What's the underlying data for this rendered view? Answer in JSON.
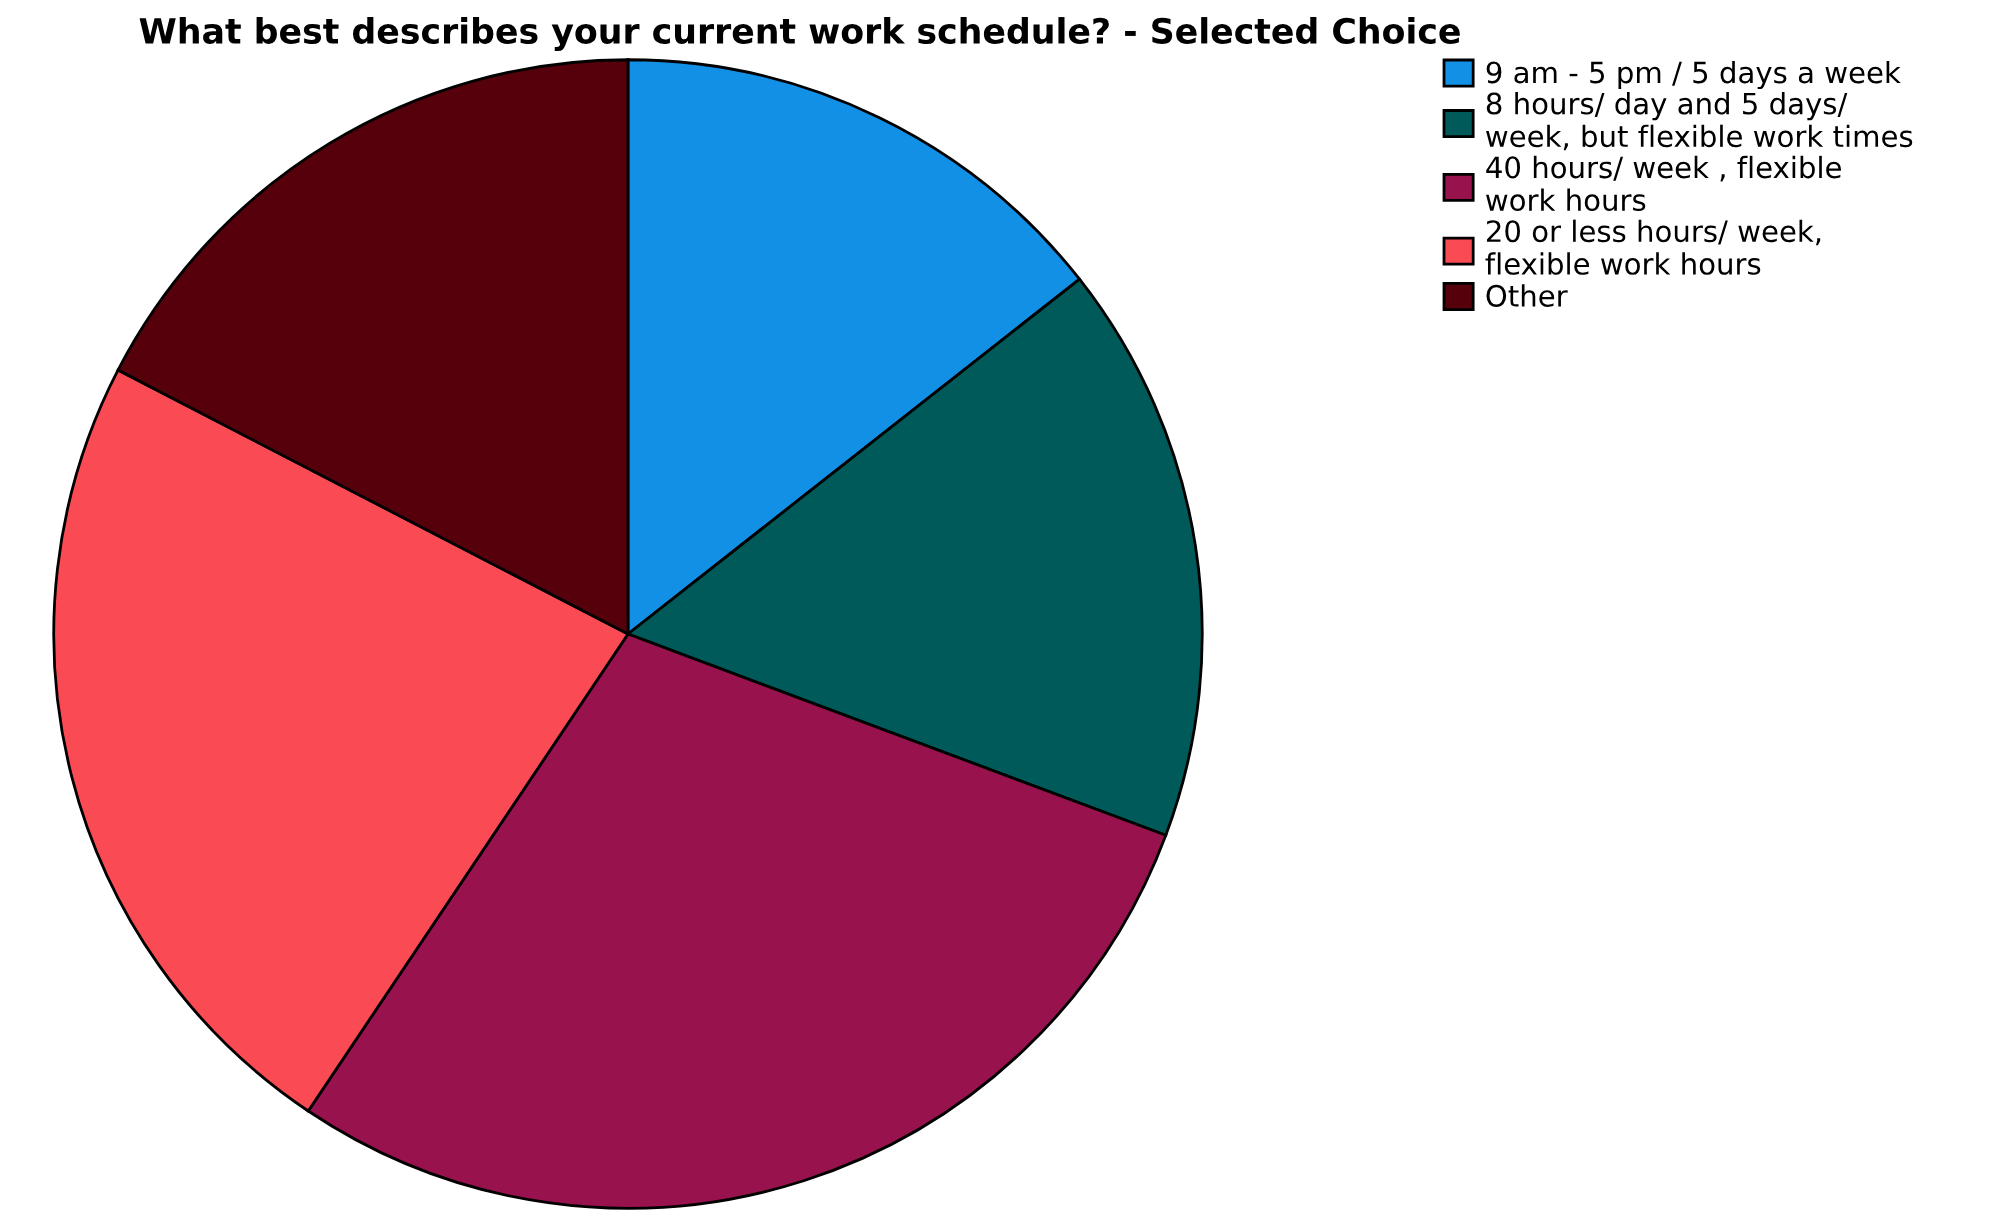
{
  "chart_data": {
    "type": "pie",
    "title": "What best describes your current work schedule? - Selected Choice",
    "categories": [
      "9 am - 5 pm / 5 days a week",
      "8 hours/ day and 5 days/\nweek, but flexible work times",
      "40 hours/ week , flexible\nwork hours",
      "20 or less hours/ week,\nflexible work hours",
      "Other"
    ],
    "values": [
      14.4,
      16.3,
      28.7,
      23.2,
      17.4
    ],
    "colors": [
      "#1190e6",
      "#005a5a",
      "#98124e",
      "#fa4b55",
      "#55000a"
    ],
    "legend": "right"
  }
}
